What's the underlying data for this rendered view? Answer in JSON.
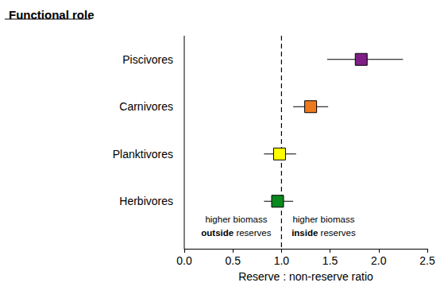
{
  "chart_data": {
    "type": "scatter",
    "orientation": "horizontal",
    "title": "Functional role",
    "x_label": "Reserve : non-reserve ratio",
    "categories": [
      "Piscivores",
      "Carnivores",
      "Planktivores",
      "Herbivores"
    ],
    "values": [
      1.82,
      1.3,
      0.98,
      0.96
    ],
    "error_low": [
      1.47,
      1.12,
      0.82,
      0.82
    ],
    "error_high": [
      2.25,
      1.48,
      1.15,
      1.12
    ],
    "colors": [
      "#7f1f86",
      "#ee7a1e",
      "#ffff00",
      "#0a8a1e"
    ],
    "marker": "square",
    "xlim": [
      0,
      2.5
    ],
    "xticks": [
      {
        "value": 0,
        "label": "0.0"
      },
      0.5,
      {
        "value": 1,
        "label": "1.0"
      },
      1.5,
      {
        "value": 2,
        "label": "2.0"
      },
      2.5
    ],
    "reference_line": 1,
    "annotations": [
      {
        "text": "higher biomass\noutside reserves",
        "bold": "outside"
      },
      {
        "text": "higher biomass\ninside reserves",
        "bold": "inside"
      }
    ],
    "grid": false
  }
}
